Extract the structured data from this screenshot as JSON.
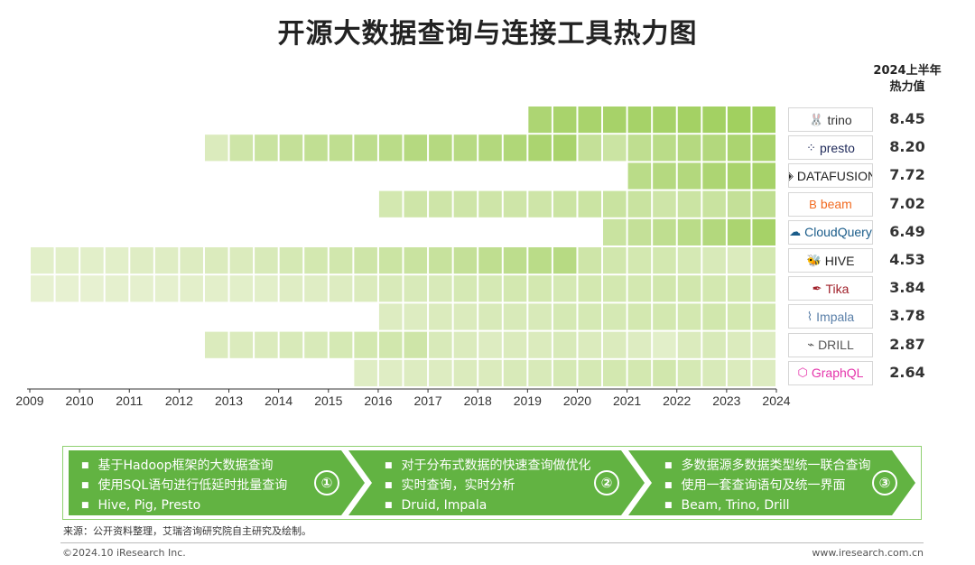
{
  "title": "开源大数据查询与连接工具热力图",
  "value_header": [
    "2024上半年",
    "热力值"
  ],
  "chart_data": {
    "type": "heatmap",
    "title": "开源大数据查询与连接工具热力图",
    "x_tick_labels": [
      "2009",
      "2010",
      "2011",
      "2012",
      "2013",
      "2014",
      "2015",
      "2016",
      "2017",
      "2018",
      "2019",
      "2020",
      "2021",
      "2022",
      "2023",
      "2024"
    ],
    "x_range": [
      2009,
      2024
    ],
    "half_year_cells": 30,
    "rows": [
      {
        "name": "trino",
        "start_cell": 20,
        "value": "8.45",
        "intensity": [
          0.68,
          0.72,
          0.72,
          0.74,
          0.75,
          0.75,
          0.77,
          0.78,
          0.8,
          0.8
        ]
      },
      {
        "name": "presto",
        "start_cell": 7,
        "value": "8.20",
        "intensity": [
          0.22,
          0.35,
          0.4,
          0.45,
          0.48,
          0.5,
          0.52,
          0.55,
          0.6,
          0.6,
          0.58,
          0.62,
          0.65,
          0.7,
          0.72,
          0.45,
          0.38,
          0.5,
          0.55,
          0.6,
          0.62,
          0.7,
          0.72
        ]
      },
      {
        "name": "DATAFUSION",
        "start_cell": 24,
        "value": "7.72",
        "intensity": [
          0.55,
          0.6,
          0.62,
          0.68,
          0.72,
          0.75
        ]
      },
      {
        "name": "beam",
        "start_cell": 14,
        "value": "7.02",
        "intensity": [
          0.3,
          0.35,
          0.35,
          0.35,
          0.35,
          0.35,
          0.35,
          0.38,
          0.38,
          0.4,
          0.4,
          0.35,
          0.38,
          0.4,
          0.45,
          0.5
        ]
      },
      {
        "name": "CloudQuery",
        "start_cell": 23,
        "value": "6.49",
        "intensity": [
          0.4,
          0.45,
          0.5,
          0.55,
          0.62,
          0.7,
          0.75
        ]
      },
      {
        "name": "HIVE",
        "start_cell": 0,
        "value": "4.53",
        "intensity": [
          0.15,
          0.15,
          0.15,
          0.15,
          0.18,
          0.18,
          0.2,
          0.22,
          0.22,
          0.25,
          0.28,
          0.3,
          0.32,
          0.35,
          0.38,
          0.4,
          0.42,
          0.45,
          0.5,
          0.52,
          0.55,
          0.58,
          0.35,
          0.32,
          0.3,
          0.3,
          0.28,
          0.25,
          0.22,
          0.3
        ]
      },
      {
        "name": "Tika",
        "start_cell": 0,
        "value": "3.84",
        "intensity": [
          0.1,
          0.1,
          0.1,
          0.12,
          0.12,
          0.12,
          0.14,
          0.14,
          0.15,
          0.15,
          0.18,
          0.18,
          0.2,
          0.22,
          0.25,
          0.25,
          0.25,
          0.28,
          0.28,
          0.3,
          0.3,
          0.28,
          0.3,
          0.3,
          0.3,
          0.32,
          0.32,
          0.3,
          0.3,
          0.28
        ]
      },
      {
        "name": "Impala",
        "start_cell": 14,
        "value": "3.78",
        "intensity": [
          0.2,
          0.2,
          0.22,
          0.22,
          0.25,
          0.25,
          0.25,
          0.28,
          0.28,
          0.28,
          0.3,
          0.3,
          0.3,
          0.32,
          0.3,
          0.3
        ]
      },
      {
        "name": "DRILL",
        "start_cell": 7,
        "value": "2.87",
        "intensity": [
          0.22,
          0.22,
          0.22,
          0.25,
          0.25,
          0.28,
          0.3,
          0.32,
          0.35,
          0.25,
          0.22,
          0.2,
          0.22,
          0.22,
          0.25,
          0.22,
          0.22,
          0.2,
          0.15,
          0.22,
          0.25,
          0.22,
          0.2
        ]
      },
      {
        "name": "GraphQL",
        "start_cell": 13,
        "value": "2.64",
        "intensity": [
          0.18,
          0.18,
          0.2,
          0.2,
          0.22,
          0.22,
          0.25,
          0.25,
          0.28,
          0.28,
          0.3,
          0.3,
          0.32,
          0.28,
          0.25,
          0.22,
          0.2
        ]
      }
    ]
  },
  "stages": [
    {
      "num": "①",
      "items": [
        "基于Hadoop框架的大数据查询",
        "使用SQL语句进行低延时批量查询",
        "Hive, Pig, Presto"
      ]
    },
    {
      "num": "②",
      "items": [
        "对于分布式数据的快速查询做优化",
        "实时查询，实时分析",
        "Druid, Impala"
      ]
    },
    {
      "num": "③",
      "items": [
        "多数据源多数据类型统一联合查询",
        "使用一套查询语句及统一界面",
        "Beam, Trino, Drill"
      ]
    }
  ],
  "logos": [
    {
      "name": "trino",
      "text": "trino",
      "glyph": "🐰",
      "color": "#333333"
    },
    {
      "name": "presto",
      "text": "presto",
      "glyph": "⁘",
      "color": "#1f2a5a"
    },
    {
      "name": "datafusion",
      "text": "DATAFUSION",
      "glyph": "◈",
      "color": "#222222"
    },
    {
      "name": "beam",
      "text": "beam",
      "glyph": "B",
      "color": "#f26b21"
    },
    {
      "name": "cloudquery",
      "text": "CloudQuery",
      "glyph": "☁",
      "color": "#1a5c8a"
    },
    {
      "name": "hive",
      "text": "HIVE",
      "glyph": "🐝",
      "color": "#222222"
    },
    {
      "name": "tika",
      "text": "Tika",
      "glyph": "✒",
      "color": "#a0202a"
    },
    {
      "name": "impala",
      "text": "Impala",
      "glyph": "⌇",
      "color": "#5a7fa8"
    },
    {
      "name": "drill",
      "text": "DRILL",
      "glyph": "⌁",
      "color": "#555555"
    },
    {
      "name": "graphql",
      "text": "GraphQL",
      "glyph": "⬡",
      "color": "#e535ab"
    }
  ],
  "source": "来源：公开资料整理，艾瑞咨询研究院自主研究及绘制。",
  "copyright": "©2024.10 iResearch Inc.",
  "website": "www.iresearch.com.cn",
  "colors": {
    "cell_light": "#f1f6e1",
    "cell_dark": "#8dc63f",
    "stage_green": "#62b342",
    "border_green": "#8fd071"
  }
}
